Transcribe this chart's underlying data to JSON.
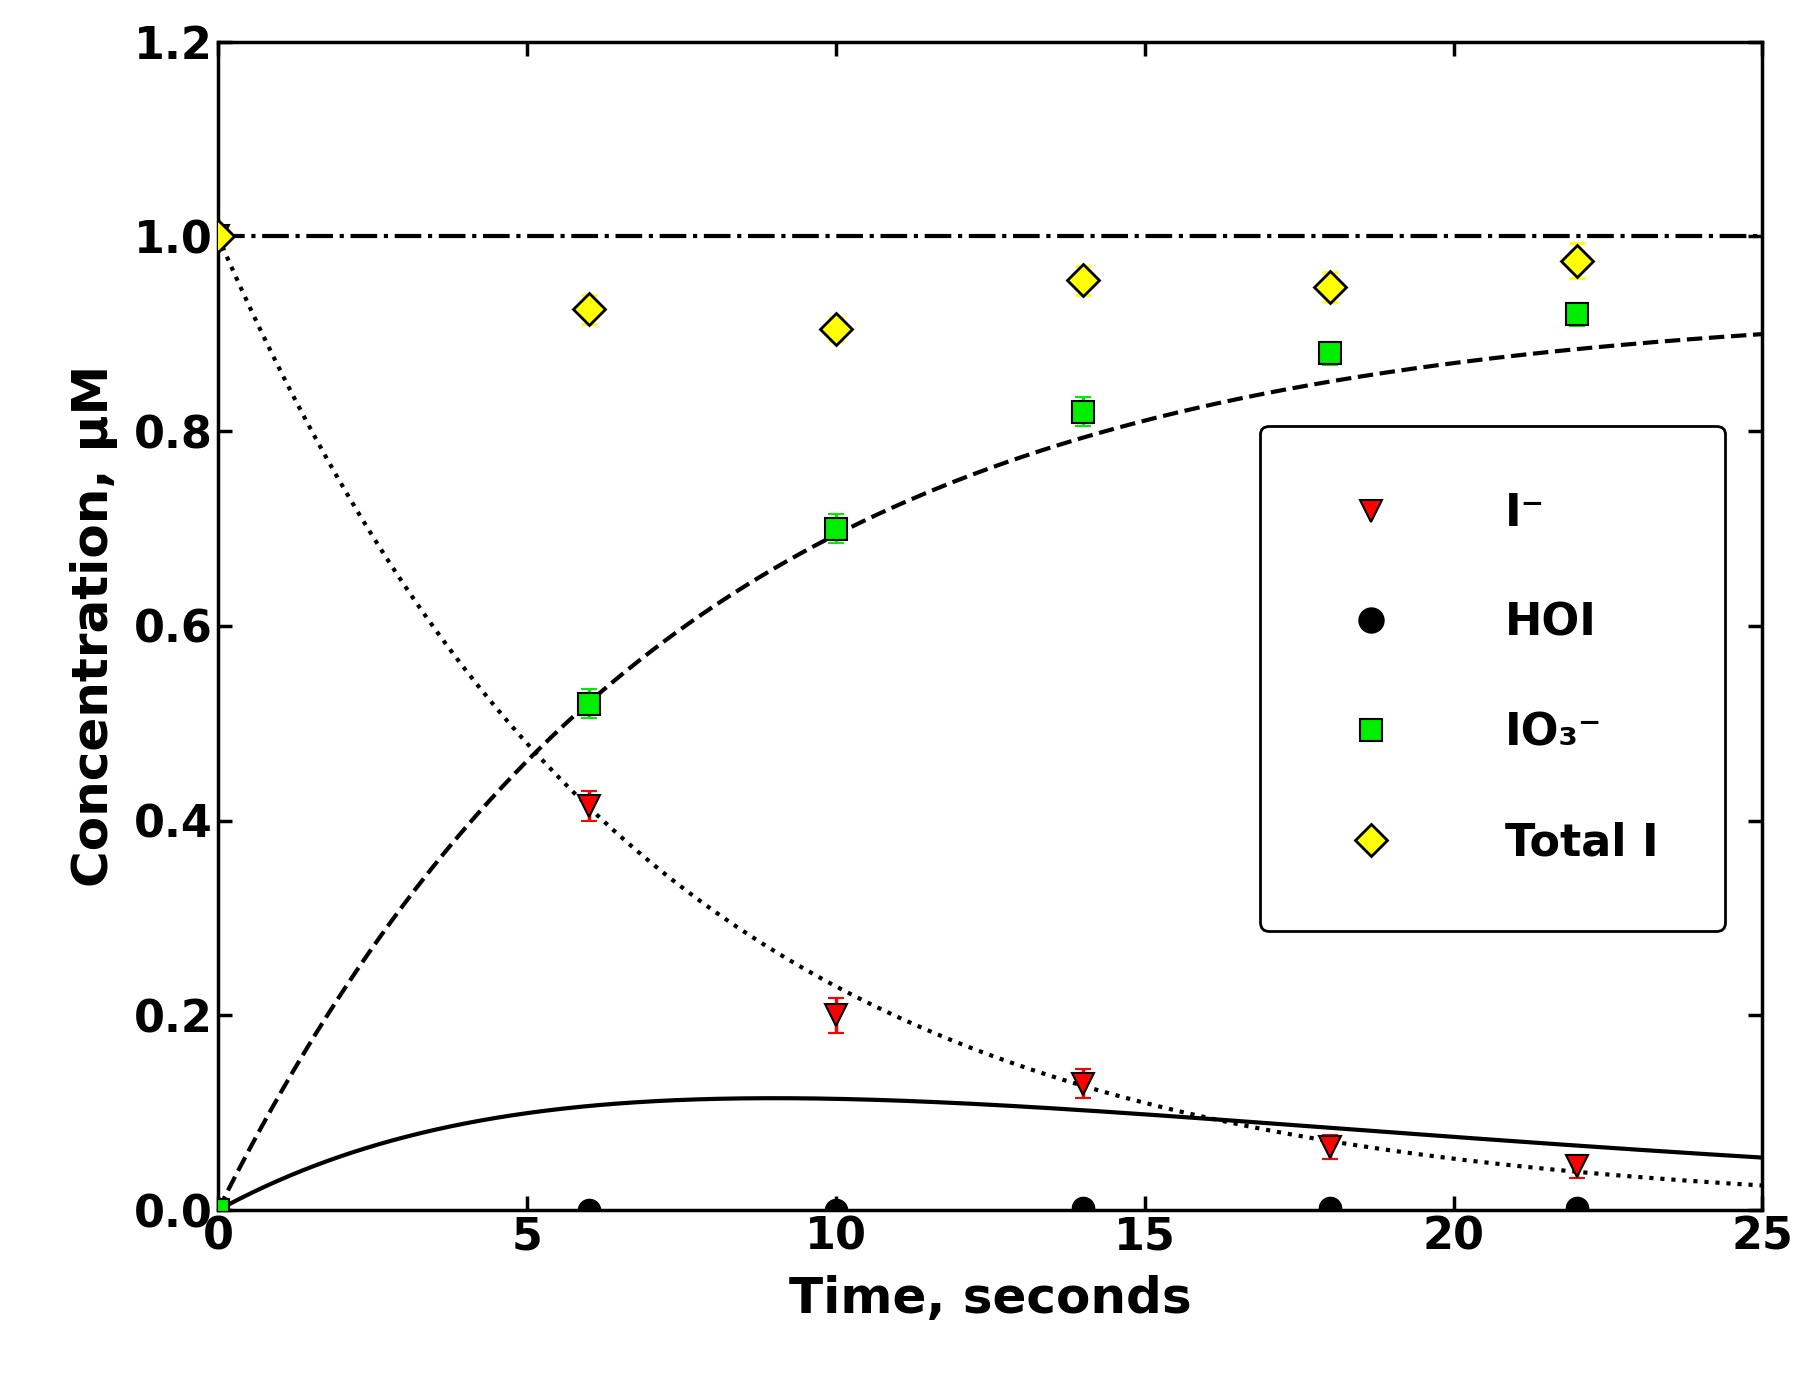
{
  "title": "",
  "xlabel": "Time, seconds",
  "ylabel": "Concentration, μM",
  "xlim": [
    0,
    25
  ],
  "ylim": [
    0,
    1.2
  ],
  "xticks": [
    0,
    5,
    10,
    15,
    20,
    25
  ],
  "yticks": [
    0.0,
    0.2,
    0.4,
    0.6,
    0.8,
    1.0,
    1.2
  ],
  "iodide_x": [
    0,
    6,
    10,
    14,
    18,
    22
  ],
  "iodide_y": [
    1.0,
    0.415,
    0.2,
    0.13,
    0.065,
    0.045
  ],
  "iodide_yerr": [
    0.0,
    0.015,
    0.018,
    0.015,
    0.012,
    0.012
  ],
  "iodide_color": "#ff0000",
  "hoi_x": [
    0,
    6,
    10,
    14,
    18,
    22
  ],
  "hoi_y": [
    0.0,
    0.0,
    0.0,
    0.002,
    0.002,
    0.002
  ],
  "hoi_color": "#000000",
  "iodate_x": [
    0,
    6,
    10,
    14,
    18,
    22
  ],
  "iodate_y": [
    0.0,
    0.52,
    0.7,
    0.82,
    0.88,
    0.92
  ],
  "iodate_yerr": [
    0.0,
    0.015,
    0.015,
    0.015,
    0.012,
    0.012
  ],
  "iodate_color": "#00ee00",
  "total_x": [
    0,
    6,
    10,
    14,
    18,
    22
  ],
  "total_y": [
    1.0,
    0.925,
    0.905,
    0.955,
    0.948,
    0.975
  ],
  "total_yerr": [
    0.0,
    0.015,
    0.012,
    0.015,
    0.015,
    0.018
  ],
  "total_color": "#ffff00",
  "legend_labels": [
    "I⁻",
    "HOI",
    "IO₃⁻",
    "Total I"
  ],
  "background_color": "#ffffff",
  "axis_fontsize": 36,
  "tick_fontsize": 32,
  "legend_fontsize": 32
}
